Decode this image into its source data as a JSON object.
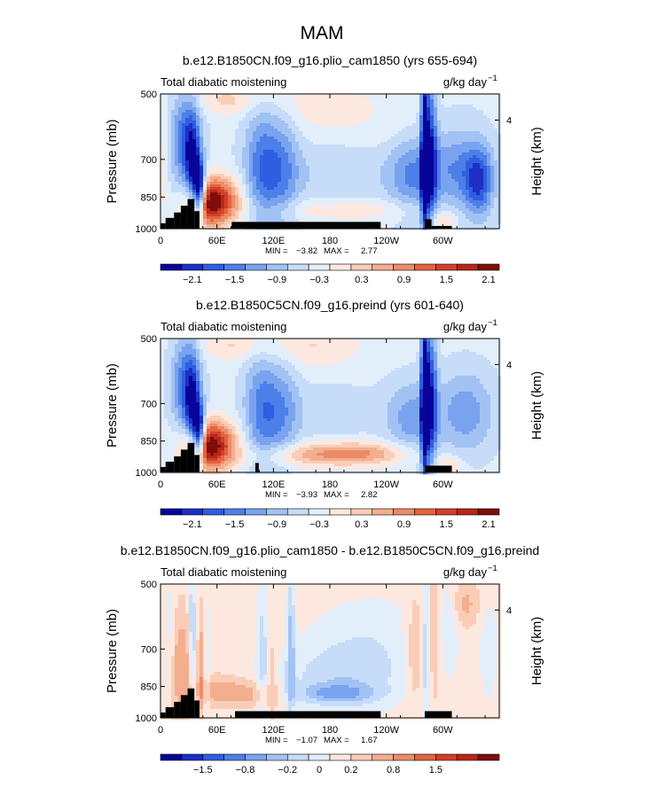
{
  "figure": {
    "season": "MAM"
  },
  "colors": {
    "negative": [
      "#08049a",
      "#1d2fc4",
      "#2f5ee0",
      "#4c7fe8",
      "#7aa3ef",
      "#a2c2f4",
      "#c6dcf8",
      "#e3eefb"
    ],
    "positive": [
      "#fde8df",
      "#f9cdb7",
      "#f3ae8f",
      "#ec8c68",
      "#e3643f",
      "#d2402a",
      "#b72718",
      "#7f0d0a"
    ],
    "land": "#000000",
    "frame": "#000000"
  },
  "chart_data": [
    {
      "type": "heatmap",
      "title": "b.e12.B1850CN.f09_g16.plio_cam1850 (yrs 655-694)",
      "left_label": "Total diabatic moistening",
      "units": "g/kg day",
      "units_exp": "−1",
      "ylabel": "Pressure (mb)",
      "ylabel_right": "Height (km)",
      "x_ticks": [
        "0",
        "60E",
        "120E",
        "180",
        "120W",
        "60W"
      ],
      "y_ticks": [
        "500",
        "700",
        "850",
        "1000"
      ],
      "right_ticks": [
        "4"
      ],
      "min_label": "MIN =",
      "min": "−3.82",
      "max_label": "MAX =",
      "max": "2.77",
      "colorbar_ticks": [
        "−2.1",
        "−1.5",
        "−0.9",
        "−0.3",
        "0.3",
        "0.9",
        "1.5",
        "2.1"
      ]
    },
    {
      "type": "heatmap",
      "title": "b.e12.B1850C5CN.f09_g16.preind (yrs 601-640)",
      "left_label": "Total diabatic moistening",
      "units": "g/kg day",
      "units_exp": "−1",
      "ylabel": "Pressure (mb)",
      "ylabel_right": "Height (km)",
      "x_ticks": [
        "0",
        "60E",
        "120E",
        "180",
        "120W",
        "60W"
      ],
      "y_ticks": [
        "500",
        "700",
        "850",
        "1000"
      ],
      "right_ticks": [
        "4"
      ],
      "min_label": "MIN =",
      "min": "−3.93",
      "max_label": "MAX =",
      "max": "2.82",
      "colorbar_ticks": [
        "−2.1",
        "−1.5",
        "−0.9",
        "−0.3",
        "0.3",
        "0.9",
        "1.5",
        "2.1"
      ]
    },
    {
      "type": "heatmap",
      "title": "b.e12.B1850CN.f09_g16.plio_cam1850 - b.e12.B1850C5CN.f09_g16.preind",
      "left_label": "Total diabatic moistening",
      "units": "g/kg day",
      "units_exp": "−1",
      "ylabel": "Pressure (mb)",
      "ylabel_right": "Height (km)",
      "x_ticks": [
        "0",
        "60E",
        "120E",
        "180",
        "120W",
        "60W"
      ],
      "y_ticks": [
        "500",
        "700",
        "850",
        "1000"
      ],
      "right_ticks": [
        "4"
      ],
      "min_label": "MIN =",
      "min": "−1.07",
      "max_label": "MAX =",
      "max": "1.67",
      "colorbar_ticks": [
        "−1.5",
        "−0.8",
        "−0.2",
        "0",
        "0.2",
        "0.8",
        "1.5"
      ]
    }
  ]
}
